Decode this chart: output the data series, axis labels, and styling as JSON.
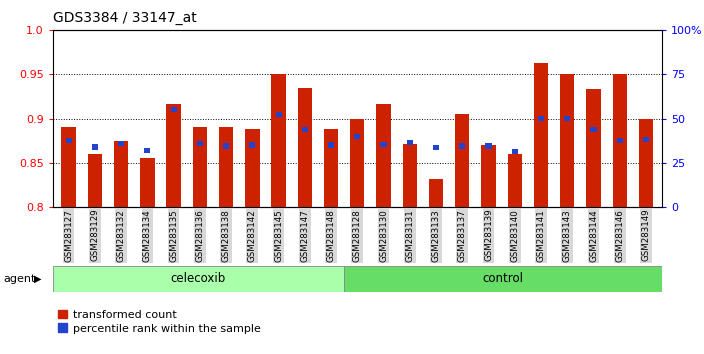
{
  "title": "GDS3384 / 33147_at",
  "samples": [
    "GSM283127",
    "GSM283129",
    "GSM283132",
    "GSM283134",
    "GSM283135",
    "GSM283136",
    "GSM283138",
    "GSM283142",
    "GSM283145",
    "GSM283147",
    "GSM283148",
    "GSM283128",
    "GSM283130",
    "GSM283131",
    "GSM283133",
    "GSM283137",
    "GSM283139",
    "GSM283140",
    "GSM283141",
    "GSM283143",
    "GSM283144",
    "GSM283146",
    "GSM283149"
  ],
  "red_values": [
    0.89,
    0.86,
    0.875,
    0.856,
    0.916,
    0.89,
    0.89,
    0.888,
    0.95,
    0.935,
    0.888,
    0.9,
    0.916,
    0.871,
    0.832,
    0.905,
    0.87,
    0.86,
    0.963,
    0.95,
    0.933,
    0.95,
    0.9
  ],
  "blue_values": [
    0.875,
    0.868,
    0.872,
    0.864,
    0.91,
    0.872,
    0.869,
    0.87,
    0.905,
    0.888,
    0.87,
    0.88,
    0.871,
    0.873,
    0.867,
    0.869,
    0.869,
    0.863,
    0.9,
    0.9,
    0.888,
    0.875,
    0.876
  ],
  "celecoxib_count": 11,
  "control_count": 12,
  "ylim_left": [
    0.8,
    1.0
  ],
  "yticks_left": [
    0.8,
    0.85,
    0.9,
    0.95
  ],
  "ytick_top": 1.0,
  "yticks_right_vals": [
    0,
    25,
    50,
    75
  ],
  "ytick_right_top": 100,
  "bar_color": "#cc2200",
  "blue_color": "#2244cc",
  "celecoxib_color": "#aaffaa",
  "control_color": "#66dd66",
  "agent_label": "agent",
  "celecoxib_label": "celecoxib",
  "control_label": "control",
  "legend_red": "transformed count",
  "legend_blue": "percentile rank within the sample",
  "bar_width": 0.55
}
